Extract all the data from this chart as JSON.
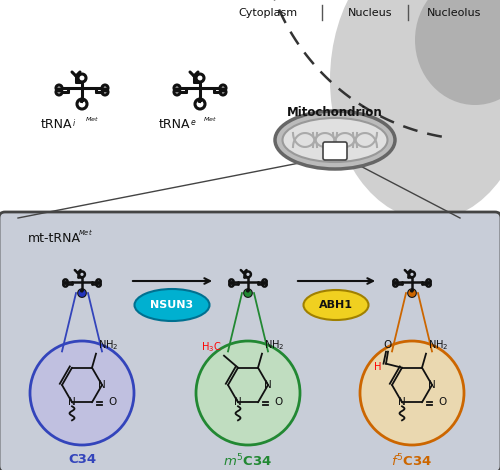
{
  "top_bg": "#ffffff",
  "box_bg": "#c8cdd8",
  "box_edge": "#444444",
  "nucleus_fill": "#d0d0d0",
  "nucleolus_fill": "#b0b0b0",
  "mito_outer_fill": "#bbbbbb",
  "mito_inner_fill": "#e0e0e0",
  "mito_edge": "#666666",
  "cytoplasm_label": "Cytoplasm",
  "nucleus_label": "Nucleus",
  "nucleolus_label": "Nucleolus",
  "mitochondrion_label": "Mitochondrion",
  "mt_trna_label": "mt-tRNA",
  "nsun3_label": "NSUN3",
  "nsun3_fill": "#00b0d0",
  "nsun3_edge": "#007090",
  "abh1_label": "ABH1",
  "abh1_fill": "#f0d020",
  "abh1_edge": "#a08000",
  "c34_label": "C34",
  "c34_dot": "#2233bb",
  "c34_circ_fill": "#c0c0e0",
  "c34_circ_edge": "#3344bb",
  "m5c34_label": "m",
  "m5c34_dot": "#228833",
  "m5c34_circ_fill": "#c0ddc0",
  "m5c34_circ_edge": "#228833",
  "f5c34_dot": "#cc6600",
  "f5c34_circ_fill": "#ead8b0",
  "f5c34_circ_edge": "#cc6600",
  "line_color": "#222222",
  "tRNA_lw": 2.2
}
